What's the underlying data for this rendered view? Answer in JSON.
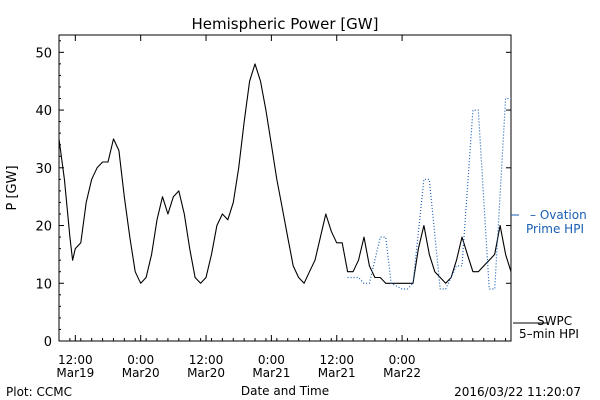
{
  "chart_data": {
    "type": "line",
    "title": "Hemispheric Power [GW]",
    "ylabel": "P [GW]",
    "xlabel": "Date and Time",
    "ylim": [
      0,
      53
    ],
    "xlim": [
      "2016-03-19 09:00",
      "2016-03-22 20:00"
    ],
    "yticks": [
      0,
      10,
      20,
      30,
      40,
      50
    ],
    "xticks": [
      {
        "time": "2016-03-19 12:00",
        "label1": "12:00",
        "label2": "Mar19"
      },
      {
        "time": "2016-03-20 00:00",
        "label1": "0:00",
        "label2": "Mar20"
      },
      {
        "time": "2016-03-20 12:00",
        "label1": "12:00",
        "label2": "Mar20"
      },
      {
        "time": "2016-03-21 00:00",
        "label1": "0:00",
        "label2": "Mar21"
      },
      {
        "time": "2016-03-21 12:00",
        "label1": "12:00",
        "label2": "Mar21"
      },
      {
        "time": "2016-03-22 00:00",
        "label1": "0:00",
        "label2": "Mar22"
      }
    ],
    "legend": [
      {
        "series": "Ovation Prime HPI",
        "text": [
          "– Ovation",
          "Prime HPI"
        ],
        "color": "#1a5fb4",
        "position": "right-middle"
      },
      {
        "series": "SWPC 5-min HPI",
        "text": [
          "SWPC",
          "5–min HPI"
        ],
        "color": "#000000",
        "position": "right-bottom"
      }
    ],
    "series": [
      {
        "name": "SWPC 5-min HPI",
        "color": "#000000",
        "style": "solid",
        "x": [
          "2016-03-19 09:00",
          "2016-03-19 10:00",
          "2016-03-19 11:00",
          "2016-03-19 11:30",
          "2016-03-19 12:00",
          "2016-03-19 13:00",
          "2016-03-19 14:00",
          "2016-03-19 15:00",
          "2016-03-19 16:00",
          "2016-03-19 17:00",
          "2016-03-19 18:00",
          "2016-03-19 19:00",
          "2016-03-19 20:00",
          "2016-03-19 21:00",
          "2016-03-19 22:00",
          "2016-03-19 23:00",
          "2016-03-20 00:00",
          "2016-03-20 01:00",
          "2016-03-20 02:00",
          "2016-03-20 03:00",
          "2016-03-20 04:00",
          "2016-03-20 05:00",
          "2016-03-20 06:00",
          "2016-03-20 07:00",
          "2016-03-20 08:00",
          "2016-03-20 09:00",
          "2016-03-20 10:00",
          "2016-03-20 11:00",
          "2016-03-20 12:00",
          "2016-03-20 13:00",
          "2016-03-20 14:00",
          "2016-03-20 15:00",
          "2016-03-20 16:00",
          "2016-03-20 17:00",
          "2016-03-20 18:00",
          "2016-03-20 19:00",
          "2016-03-20 20:00",
          "2016-03-20 21:00",
          "2016-03-20 22:00",
          "2016-03-20 23:00",
          "2016-03-21 00:00",
          "2016-03-21 01:00",
          "2016-03-21 02:00",
          "2016-03-21 03:00",
          "2016-03-21 04:00",
          "2016-03-21 05:00",
          "2016-03-21 06:00",
          "2016-03-21 07:00",
          "2016-03-21 08:00",
          "2016-03-21 09:00",
          "2016-03-21 10:00",
          "2016-03-21 11:00",
          "2016-03-21 12:00",
          "2016-03-21 13:00",
          "2016-03-21 14:00",
          "2016-03-21 15:00",
          "2016-03-21 16:00",
          "2016-03-21 17:00",
          "2016-03-21 18:00",
          "2016-03-21 19:00",
          "2016-03-21 20:00",
          "2016-03-21 21:00",
          "2016-03-21 22:00",
          "2016-03-21 23:00",
          "2016-03-22 00:00",
          "2016-03-22 01:00",
          "2016-03-22 02:00",
          "2016-03-22 03:00",
          "2016-03-22 04:00",
          "2016-03-22 05:00",
          "2016-03-22 06:00",
          "2016-03-22 07:00",
          "2016-03-22 08:00",
          "2016-03-22 09:00",
          "2016-03-22 10:00",
          "2016-03-22 11:00",
          "2016-03-22 12:00",
          "2016-03-22 13:00",
          "2016-03-22 14:00",
          "2016-03-22 15:00",
          "2016-03-22 16:00",
          "2016-03-22 17:00",
          "2016-03-22 18:00",
          "2016-03-22 19:00",
          "2016-03-22 20:00"
        ],
        "y": [
          35,
          28,
          18,
          14,
          16,
          17,
          24,
          28,
          30,
          31,
          31,
          35,
          33,
          25,
          18,
          12,
          10,
          11,
          15,
          21,
          25,
          22,
          25,
          26,
          22,
          16,
          11,
          10,
          11,
          15,
          20,
          22,
          21,
          24,
          30,
          38,
          45,
          48,
          45,
          40,
          34,
          28,
          23,
          18,
          13,
          11,
          10,
          12,
          14,
          18,
          22,
          19,
          17,
          17,
          12,
          12,
          14,
          18,
          13,
          11,
          11,
          10,
          10,
          10,
          10,
          10,
          10,
          16,
          20,
          15,
          12,
          11,
          10,
          11,
          14,
          18,
          15,
          12,
          12,
          13,
          14,
          15,
          20,
          15,
          12
        ]
      },
      {
        "name": "Ovation Prime HPI",
        "color": "#1a5fb4",
        "style": "dotted",
        "x": [
          "2016-03-21 14:00",
          "2016-03-21 16:00",
          "2016-03-21 17:00",
          "2016-03-21 18:00",
          "2016-03-21 20:00",
          "2016-03-21 21:00",
          "2016-03-21 22:00",
          "2016-03-22 00:00",
          "2016-03-22 01:00",
          "2016-03-22 02:00",
          "2016-03-22 04:00",
          "2016-03-22 05:00",
          "2016-03-22 07:00",
          "2016-03-22 08:00",
          "2016-03-22 10:00",
          "2016-03-22 11:00",
          "2016-03-22 13:00",
          "2016-03-22 14:00",
          "2016-03-22 16:00",
          "2016-03-22 17:00",
          "2016-03-22 19:00",
          "2016-03-22 20:00"
        ],
        "y": [
          11,
          11,
          10,
          10,
          18,
          18,
          10,
          9,
          9,
          10,
          28,
          28,
          9,
          9,
          13,
          13,
          40,
          40,
          9,
          9,
          42,
          42
        ]
      }
    ]
  },
  "footer": {
    "left": "Plot: CCMC",
    "right": "2016/03/22 11:20:07"
  }
}
